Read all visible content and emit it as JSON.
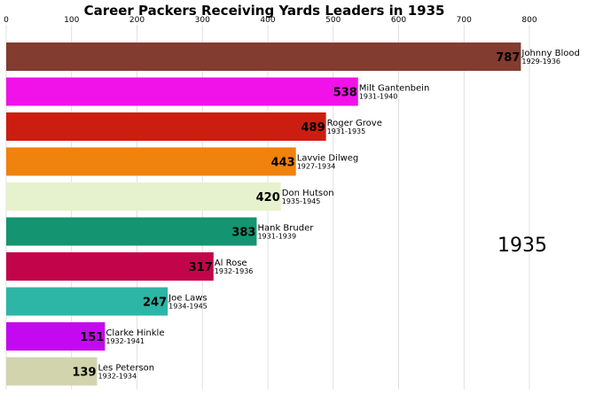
{
  "chart_data": {
    "type": "bar",
    "orientation": "horizontal",
    "title": "Career Packers Receiving Yards Leaders in 1935",
    "year": "1935",
    "xlim": [
      0,
      800
    ],
    "xticks": [
      "0",
      "100",
      "200",
      "300",
      "400",
      "500",
      "600",
      "700",
      "800"
    ],
    "grid": true,
    "bars": [
      {
        "name": "Johnny Blood",
        "years": "1929-1936",
        "value": 787,
        "color": "#823C30"
      },
      {
        "name": "Milt Gantenbein",
        "years": "1931-1940",
        "value": 538,
        "color": "#F012E8"
      },
      {
        "name": "Roger Grove",
        "years": "1931-1935",
        "value": 489,
        "color": "#CC1E10"
      },
      {
        "name": "Lavvie Dilweg",
        "years": "1927-1934",
        "value": 443,
        "color": "#F0820E"
      },
      {
        "name": "Don Hutson",
        "years": "1935-1945",
        "value": 420,
        "color": "#E6F2CD"
      },
      {
        "name": "Hank Bruder",
        "years": "1931-1939",
        "value": 383,
        "color": "#149470"
      },
      {
        "name": "Al Rose",
        "years": "1932-1936",
        "value": 317,
        "color": "#C2054A"
      },
      {
        "name": "Joe Laws",
        "years": "1934-1945",
        "value": 247,
        "color": "#2DB5A6"
      },
      {
        "name": "Clarke Hinkle",
        "years": "1932-1941",
        "value": 151,
        "color": "#C408F0"
      },
      {
        "name": "Les Peterson",
        "years": "1932-1934",
        "value": 139,
        "color": "#D2D4AE"
      }
    ]
  }
}
